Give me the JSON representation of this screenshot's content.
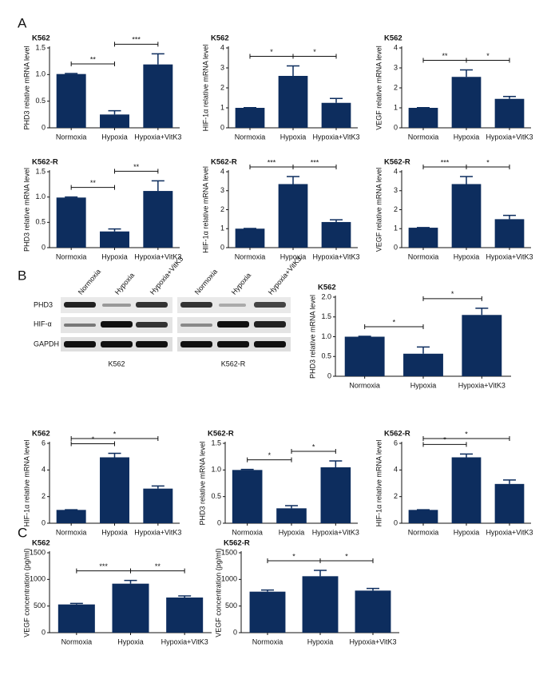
{
  "panels": [
    "A",
    "B",
    "C"
  ],
  "blot": {
    "lanes": [
      "Normoxia",
      "Hypoxia",
      "Hypoxia+VitK3",
      "Normoxia",
      "Hypoxia",
      "Hypoxia+VitK3"
    ],
    "rows": [
      "PHD3",
      "HIF-α",
      "GAPDH"
    ],
    "groups": [
      "K562",
      "K562-R"
    ]
  },
  "chart_data": [
    {
      "type": "bar",
      "title": "K562",
      "y_label": "PHD3 relative mRNA level",
      "color": "#0d2d5e",
      "categories": [
        "Normoxia",
        "Hypoxia",
        "Hypoxia+VitK3"
      ],
      "values": [
        1.01,
        0.25,
        1.19
      ],
      "errors": [
        0.01,
        0.07,
        0.2
      ],
      "ylim": [
        0,
        1.5
      ],
      "yticks": [
        0,
        0.5,
        {
          "value": 1,
          "label": "1.0"
        },
        1.5
      ],
      "annotations": [
        {
          "label": "**",
          "categories": [
            0,
            1
          ]
        },
        {
          "label": "***",
          "categories": [
            1,
            2
          ]
        }
      ]
    },
    {
      "type": "bar",
      "title": "K562",
      "y_label": "HIF-1α relative mRNA level",
      "color": "#0d2d5e",
      "categories": [
        "Normoxia",
        "Hypoxia",
        "Hypoxia+VitK3"
      ],
      "values": [
        1.0,
        2.6,
        1.25
      ],
      "errors": [
        0.01,
        0.5,
        0.22
      ],
      "ylim": [
        0,
        4
      ],
      "yticks": [
        0,
        1,
        2,
        3,
        4
      ],
      "annotations": [
        {
          "label": "*",
          "categories": [
            0,
            1
          ]
        },
        {
          "label": "*",
          "categories": [
            1,
            2
          ]
        }
      ]
    },
    {
      "type": "bar",
      "title": "K562",
      "y_label": "VEGF relative mRNA level",
      "color": "#0d2d5e",
      "categories": [
        "Normoxia",
        "Hypoxia",
        "Hypoxia+VitK3"
      ],
      "values": [
        1.0,
        2.55,
        1.45
      ],
      "errors": [
        0.01,
        0.35,
        0.12
      ],
      "ylim": [
        0,
        4
      ],
      "yticks": [
        0,
        1,
        2,
        3,
        4
      ],
      "annotations": [
        {
          "label": "**",
          "categories": [
            0,
            1
          ]
        },
        {
          "label": "*",
          "categories": [
            1,
            2
          ]
        }
      ]
    },
    {
      "type": "bar",
      "title": "K562-R",
      "y_label": "PHD3 relative mRNA level",
      "color": "#0d2d5e",
      "categories": [
        "Normoxia",
        "Hypoxia",
        "Hypoxia+VitK3"
      ],
      "values": [
        0.99,
        0.32,
        1.12
      ],
      "errors": [
        0.01,
        0.05,
        0.2
      ],
      "ylim": [
        0,
        1.5
      ],
      "yticks": [
        0,
        0.5,
        {
          "value": 1,
          "label": "1.0"
        },
        1.5
      ],
      "annotations": [
        {
          "label": "**",
          "categories": [
            0,
            1
          ]
        },
        {
          "label": "**",
          "categories": [
            1,
            2
          ]
        }
      ]
    },
    {
      "type": "bar",
      "title": "K562-R",
      "y_label": "HIF-1α relative mRNA level",
      "color": "#0d2d5e",
      "categories": [
        "Normoxia",
        "Hypoxia",
        "Hypoxia+VitK3"
      ],
      "values": [
        1.0,
        3.35,
        1.35
      ],
      "errors": [
        0.01,
        0.4,
        0.12
      ],
      "ylim": [
        0,
        4
      ],
      "yticks": [
        0,
        1,
        2,
        3,
        4
      ],
      "annotations": [
        {
          "label": "***",
          "categories": [
            0,
            1
          ]
        },
        {
          "label": "***",
          "categories": [
            1,
            2
          ]
        }
      ]
    },
    {
      "type": "bar",
      "title": "K562-R",
      "y_label": "VEGF relative mRNA level",
      "color": "#0d2d5e",
      "categories": [
        "Normoxia",
        "Hypoxia",
        "Hypoxia+VitK3"
      ],
      "values": [
        1.05,
        3.35,
        1.5
      ],
      "errors": [
        0.01,
        0.4,
        0.2
      ],
      "ylim": [
        0,
        4
      ],
      "yticks": [
        0,
        1,
        2,
        3,
        4
      ],
      "annotations": [
        {
          "label": "***",
          "categories": [
            0,
            1
          ]
        },
        {
          "label": "*",
          "categories": [
            1,
            2
          ]
        }
      ]
    },
    {
      "type": "bar",
      "title": "K562",
      "y_label": "PHD3 relative mRNA level",
      "color": "#0d2d5e",
      "categories": [
        "Normoxia",
        "Hypoxia",
        "Hypoxia+VitK3"
      ],
      "values": [
        1.0,
        0.57,
        1.55
      ],
      "errors": [
        0.01,
        0.17,
        0.17
      ],
      "ylim": [
        0,
        2
      ],
      "yticks": [
        0,
        0.5,
        {
          "value": 1,
          "label": "1.0"
        },
        1.5,
        {
          "value": 2,
          "label": "2.0"
        }
      ],
      "annotations": [
        {
          "label": "*",
          "categories": [
            0,
            1
          ]
        },
        {
          "label": "*",
          "categories": [
            1,
            2
          ]
        }
      ]
    },
    {
      "type": "bar",
      "title": "K562",
      "y_label": "HIF-1α relative mRNA level",
      "color": "#0d2d5e",
      "categories": [
        "Normoxia",
        "Hypoxia",
        "Hypoxia+VitK3"
      ],
      "values": [
        1.0,
        4.95,
        2.6
      ],
      "errors": [
        0.01,
        0.3,
        0.2
      ],
      "ylim": [
        0,
        6
      ],
      "yticks": [
        0,
        2,
        4,
        6
      ],
      "annotations": [
        {
          "label": "*",
          "categories": [
            0,
            1
          ]
        },
        {
          "label": "*",
          "categories": [
            0,
            2
          ]
        }
      ]
    },
    {
      "type": "bar",
      "title": "K562-R",
      "y_label": "PHD3 relative mRNA level",
      "color": "#0d2d5e",
      "categories": [
        "Normoxia",
        "Hypoxia",
        "Hypoxia+VitK3"
      ],
      "values": [
        1.0,
        0.28,
        1.05
      ],
      "errors": [
        0.01,
        0.05,
        0.12
      ],
      "ylim": [
        0,
        1.5
      ],
      "yticks": [
        0,
        0.5,
        {
          "value": 1,
          "label": "1.0"
        },
        1.5
      ],
      "annotations": [
        {
          "label": "*",
          "categories": [
            0,
            1
          ]
        },
        {
          "label": "*",
          "categories": [
            1,
            2
          ]
        }
      ]
    },
    {
      "type": "bar",
      "title": "K562-R",
      "y_label": "HIF-1α relative mRNA level",
      "color": "#0d2d5e",
      "categories": [
        "Normoxia",
        "Hypoxia",
        "Hypoxia+VitK3"
      ],
      "values": [
        1.0,
        4.95,
        2.95
      ],
      "errors": [
        0.01,
        0.25,
        0.3
      ],
      "ylim": [
        0,
        6
      ],
      "yticks": [
        0,
        2,
        4,
        6
      ],
      "annotations": [
        {
          "label": "*",
          "categories": [
            0,
            1
          ]
        },
        {
          "label": "*",
          "categories": [
            0,
            2
          ]
        }
      ]
    },
    {
      "type": "bar",
      "title": "K562",
      "y_label": "VEGF concentration (pg/ml)",
      "color": "#0d2d5e",
      "categories": [
        "Normoxia",
        "Hypoxia",
        "Hypoxia+VitK3"
      ],
      "values": [
        530,
        920,
        660
      ],
      "errors": [
        20,
        60,
        30
      ],
      "ylim": [
        0,
        1500
      ],
      "yticks": [
        0,
        500,
        1000,
        1500
      ],
      "annotations": [
        {
          "label": "***",
          "categories": [
            0,
            1
          ]
        },
        {
          "label": "**",
          "categories": [
            1,
            2
          ]
        }
      ]
    },
    {
      "type": "bar",
      "title": "K562-R",
      "y_label": "VEGF concentration (pg/ml)",
      "color": "#0d2d5e",
      "categories": [
        "Normoxia",
        "Hypoxia",
        "Hypoxia+VitK3"
      ],
      "values": [
        770,
        1060,
        790
      ],
      "errors": [
        30,
        110,
        40
      ],
      "ylim": [
        0,
        1500
      ],
      "yticks": [
        0,
        500,
        1000,
        1500
      ],
      "annotations": [
        {
          "label": "*",
          "categories": [
            0,
            1
          ]
        },
        {
          "label": "*",
          "categories": [
            1,
            2
          ]
        }
      ]
    }
  ]
}
